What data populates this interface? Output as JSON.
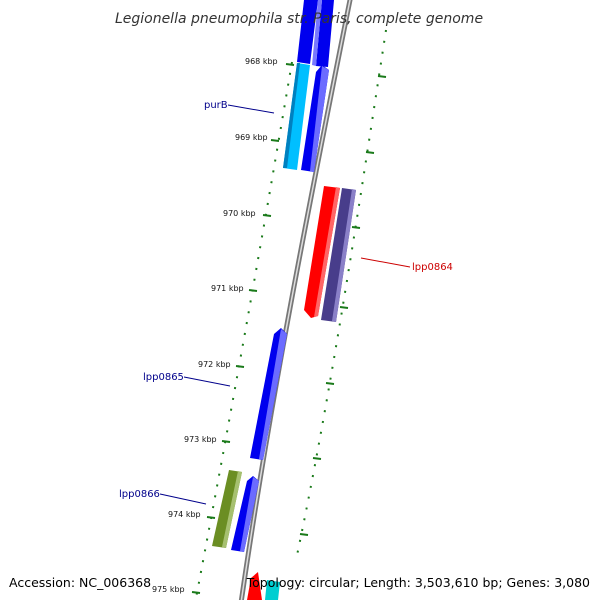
{
  "title": "Legionella pneumophila str. Paris, complete genome",
  "accession": "Accession: NC_006368",
  "topology": "Topology: circular; Length: 3,503,610 bp; Genes: 3,080",
  "colors": {
    "backbone": "#8c8c8c",
    "tick": "#1a7a1a",
    "gene_forward": "#0000ee",
    "gene_reverse_red": "#ff0000",
    "gene_purple": "#483d8b",
    "gene_cyan": "#00bfff",
    "gene_olive": "#6b8e23",
    "label_blue": "#00008b",
    "label_red": "#cc0000"
  },
  "ticks": [
    "968 kbp",
    "969 kbp",
    "970 kbp",
    "971 kbp",
    "972 kbp",
    "973 kbp",
    "974 kbp",
    "975 kbp"
  ],
  "genes": [
    {
      "label": "purB",
      "color": "#00bfff",
      "strand": "forward"
    },
    {
      "label": "lpp0864",
      "color": "#483d8b",
      "strand": "reverse"
    },
    {
      "label": "lpp0865",
      "color": "#0000ee",
      "strand": "forward"
    },
    {
      "label": "lpp0866",
      "color": "#6b8e23",
      "strand": "forward"
    }
  ]
}
